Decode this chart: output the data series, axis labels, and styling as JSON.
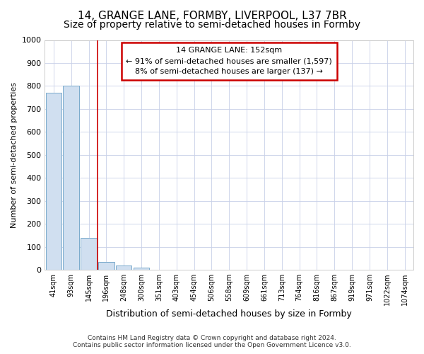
{
  "title1": "14, GRANGE LANE, FORMBY, LIVERPOOL, L37 7BR",
  "title2": "Size of property relative to semi-detached houses in Formby",
  "xlabel": "Distribution of semi-detached houses by size in Formby",
  "ylabel": "Number of semi-detached properties",
  "annotation_line1": "14 GRANGE LANE: 152sqm",
  "annotation_line2": "← 91% of semi-detached houses are smaller (1,597)",
  "annotation_line3": "8% of semi-detached houses are larger (137) →",
  "footer1": "Contains HM Land Registry data © Crown copyright and database right 2024.",
  "footer2": "Contains public sector information licensed under the Open Government Licence v3.0.",
  "bin_labels": [
    "41sqm",
    "93sqm",
    "145sqm",
    "196sqm",
    "248sqm",
    "300sqm",
    "351sqm",
    "403sqm",
    "454sqm",
    "506sqm",
    "558sqm",
    "609sqm",
    "661sqm",
    "713sqm",
    "764sqm",
    "816sqm",
    "867sqm",
    "919sqm",
    "971sqm",
    "1022sqm",
    "1074sqm"
  ],
  "bar_heights": [
    770,
    800,
    140,
    35,
    18,
    10,
    0,
    0,
    0,
    0,
    0,
    0,
    0,
    0,
    0,
    0,
    0,
    0,
    0,
    0,
    0
  ],
  "bar_color": "#d0dff0",
  "bar_edge_color": "#7aaacc",
  "property_line_x": 2.5,
  "property_line_color": "#cc0000",
  "ylim": [
    0,
    1000
  ],
  "yticks": [
    0,
    100,
    200,
    300,
    400,
    500,
    600,
    700,
    800,
    900,
    1000
  ],
  "bg_color": "#ffffff",
  "plot_bg_color": "#ffffff",
  "annotation_box_color": "#ffffff",
  "annotation_border_color": "#cc0000",
  "title1_fontsize": 11,
  "title2_fontsize": 10,
  "grid_color": "#c8d0e8"
}
